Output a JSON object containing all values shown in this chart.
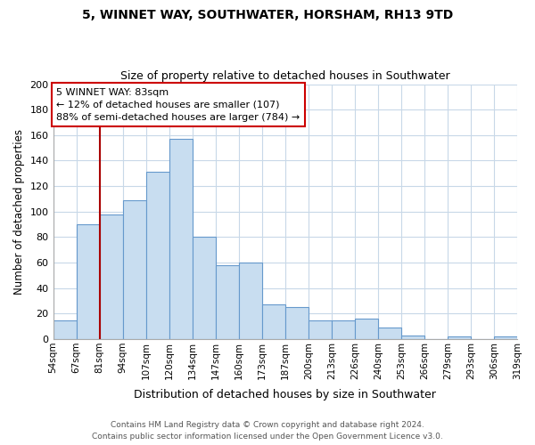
{
  "title_line1": "5, WINNET WAY, SOUTHWATER, HORSHAM, RH13 9TD",
  "title_line2": "Size of property relative to detached houses in Southwater",
  "xlabel": "Distribution of detached houses by size in Southwater",
  "ylabel": "Number of detached properties",
  "bin_labels": [
    "54sqm",
    "67sqm",
    "81sqm",
    "94sqm",
    "107sqm",
    "120sqm",
    "134sqm",
    "147sqm",
    "160sqm",
    "173sqm",
    "187sqm",
    "200sqm",
    "213sqm",
    "226sqm",
    "240sqm",
    "253sqm",
    "266sqm",
    "279sqm",
    "293sqm",
    "306sqm",
    "319sqm"
  ],
  "bar_heights": [
    15,
    90,
    98,
    109,
    131,
    157,
    80,
    58,
    60,
    27,
    25,
    15,
    15,
    16,
    9,
    3,
    0,
    2,
    0,
    2
  ],
  "bar_color": "#c8ddf0",
  "bar_edge_color": "#6699cc",
  "vline_x_index": 2,
  "vline_color": "#aa0000",
  "annotation_title": "5 WINNET WAY: 83sqm",
  "annotation_line1": "← 12% of detached houses are smaller (107)",
  "annotation_line2": "88% of semi-detached houses are larger (784) →",
  "annotation_box_color": "#ffffff",
  "annotation_box_edge": "#cc0000",
  "ylim": [
    0,
    200
  ],
  "yticks": [
    0,
    20,
    40,
    60,
    80,
    100,
    120,
    140,
    160,
    180,
    200
  ],
  "footer_line1": "Contains HM Land Registry data © Crown copyright and database right 2024.",
  "footer_line2": "Contains public sector information licensed under the Open Government Licence v3.0.",
  "bg_color": "#ffffff",
  "grid_color": "#c8d8e8"
}
